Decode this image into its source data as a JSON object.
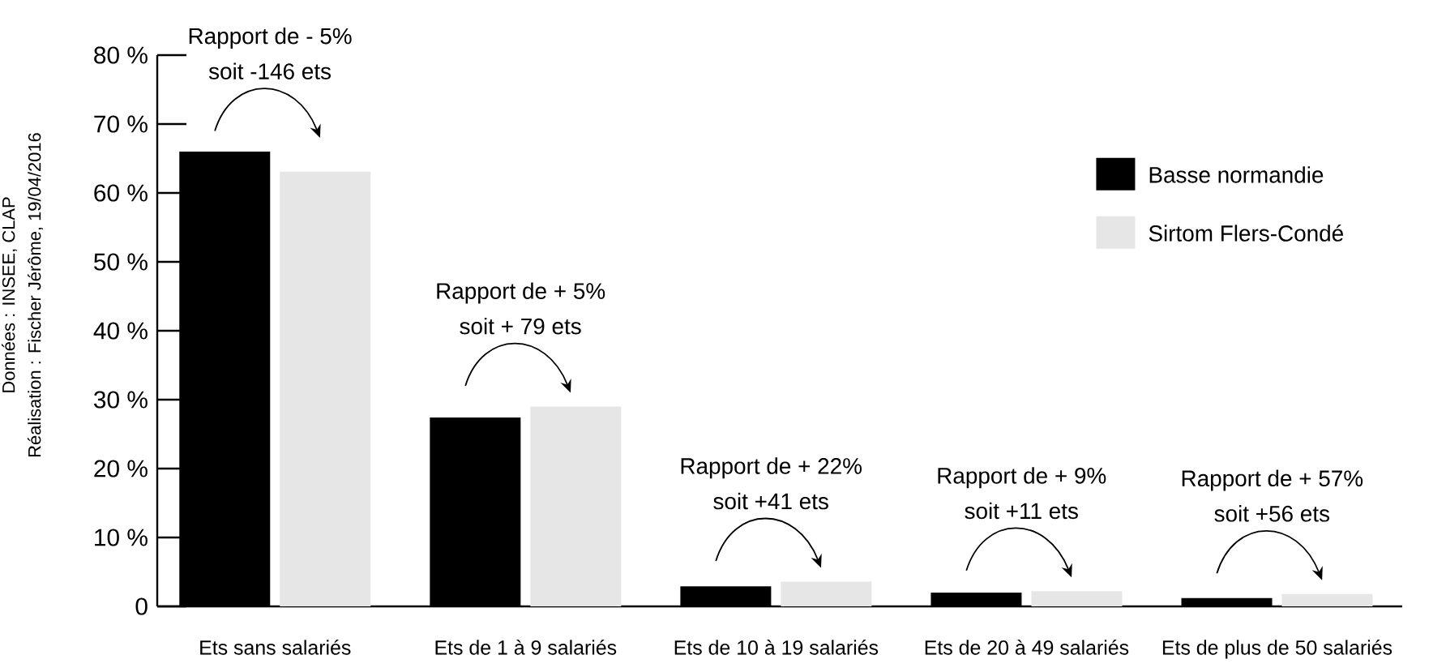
{
  "chart_data": {
    "type": "bar",
    "categories": [
      "Ets sans salariés",
      "Ets de 1 à 9 salariés",
      "Ets de 10 à 19 salariés",
      "Ets de 20 à 49 salariés",
      "Ets de plus de 50 salariés"
    ],
    "series": [
      {
        "name": "Basse normandie",
        "color": "#000000",
        "values": [
          66.0,
          27.4,
          2.9,
          2.0,
          1.2
        ]
      },
      {
        "name": "Sirtom Flers-Condé",
        "color": "#e6e6e6",
        "values": [
          63.1,
          29.0,
          3.6,
          2.2,
          1.8
        ]
      }
    ],
    "ylim": [
      0,
      80
    ],
    "yticks": [
      {
        "value": 0,
        "label": "0"
      },
      {
        "value": 10,
        "label": "10 %"
      },
      {
        "value": 20,
        "label": "20 %"
      },
      {
        "value": 30,
        "label": "30 %"
      },
      {
        "value": 40,
        "label": "40 %"
      },
      {
        "value": 50,
        "label": "50 %"
      },
      {
        "value": 60,
        "label": "60 %"
      },
      {
        "value": 70,
        "label": "70 %"
      },
      {
        "value": 80,
        "label": "80 %"
      }
    ],
    "legend": "top right",
    "annotations": [
      "Rapport de - 5%",
      "soit -146 ets",
      "Rapport de + 5%",
      "soit + 79 ets",
      "Rapport de + 22%",
      "soit +41 ets",
      "Rapport de + 9%",
      "soit +11 ets",
      "Rapport de + 57%",
      "soit +56 ets",
      "Données : INSEE, CLAP",
      "Réalisation : Fischer Jérôme, 19/04/2016"
    ]
  }
}
